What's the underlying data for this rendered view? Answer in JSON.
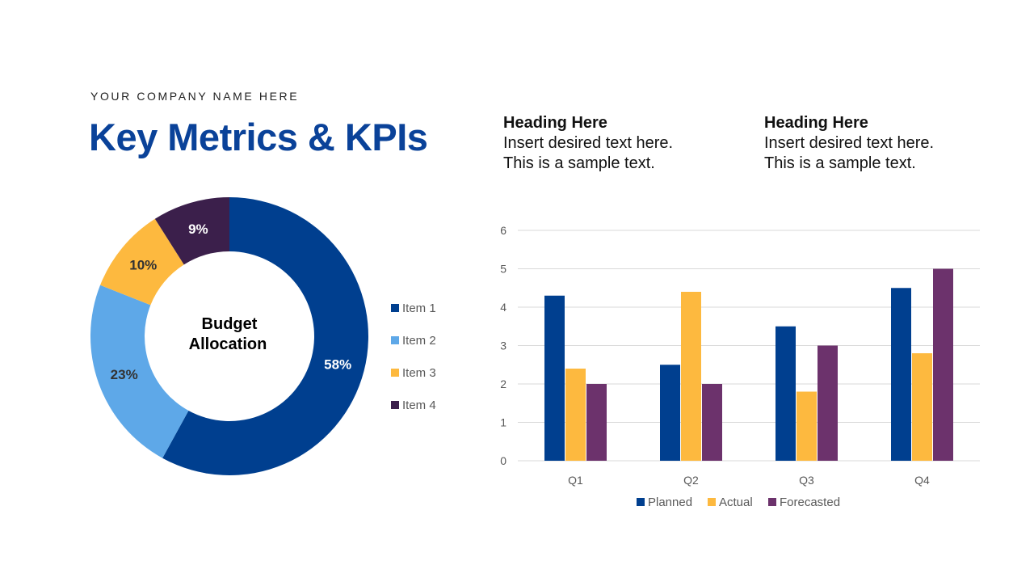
{
  "header": {
    "company": "YOUR COMPANY NAME HERE",
    "title": "Key Metrics & KPIs"
  },
  "text_blocks": [
    {
      "heading": "Heading Here",
      "line1": "Insert desired text here.",
      "line2": "This is a sample text."
    },
    {
      "heading": "Heading Here",
      "line1": "Insert desired text here.",
      "line2": "This is a sample text."
    }
  ],
  "chart_data": [
    {
      "type": "pie",
      "donut": true,
      "center_label_line1": "Budget",
      "center_label_line2": "Allocation",
      "categories": [
        "Item 1",
        "Item 2",
        "Item 3",
        "Item 4"
      ],
      "values": [
        58,
        23,
        10,
        9
      ],
      "labels": [
        "58%",
        "23%",
        "10%",
        "9%"
      ],
      "colors": [
        "#003f8f",
        "#5ea8e8",
        "#fdb93f",
        "#3b1f4b"
      ],
      "label_colors": [
        "#ffffff",
        "#333333",
        "#333333",
        "#ffffff"
      ],
      "legend": "right"
    },
    {
      "type": "bar",
      "categories": [
        "Q1",
        "Q2",
        "Q3",
        "Q4"
      ],
      "series": [
        {
          "name": "Planned",
          "values": [
            4.3,
            2.5,
            3.5,
            4.5
          ],
          "color": "#003f8f"
        },
        {
          "name": "Actual",
          "values": [
            2.4,
            4.4,
            1.8,
            2.8
          ],
          "color": "#fdb93f"
        },
        {
          "name": "Forecasted",
          "values": [
            2,
            2,
            3,
            5
          ],
          "color": "#6c326c"
        }
      ],
      "ylim": [
        0,
        6
      ],
      "yticks": [
        "0",
        "1",
        "2",
        "3",
        "4",
        "5",
        "6"
      ],
      "grid": true,
      "legend": "bottom"
    }
  ]
}
